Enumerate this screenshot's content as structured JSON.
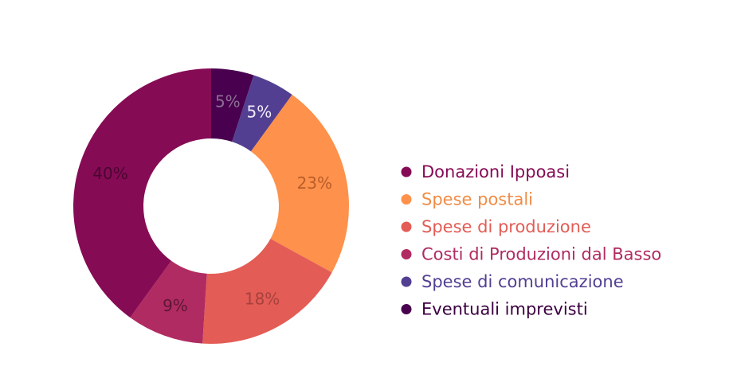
{
  "chart_data": {
    "type": "pie",
    "donut": true,
    "categories": [
      "Donazioni Ippoasi",
      "Spese postali",
      "Spese di produzione",
      "Costi di Produzioni dal Basso",
      "Spese di comunicazione",
      "Eventuali imprevisti"
    ],
    "values": [
      40,
      23,
      18,
      9,
      5,
      5
    ],
    "data_labels": [
      "40%",
      "23%",
      "18%",
      "9%",
      "5%",
      "5%"
    ],
    "colors": [
      "#860b55",
      "#fe914b",
      "#e35c55",
      "#b02b61",
      "#533f92",
      "#49004f"
    ],
    "label_colors": [
      "#4a0630",
      "#b85d2a",
      "#a8413d",
      "#5e1736",
      "#f0ecf8",
      "#8c6f94"
    ],
    "legend_text_colors": [
      "#860b55",
      "#f28c45",
      "#e35c55",
      "#b02b61",
      "#533f92",
      "#3b0040"
    ],
    "legend_position": "right",
    "start_slice_order": [
      5,
      4,
      1,
      2,
      3,
      0
    ]
  }
}
